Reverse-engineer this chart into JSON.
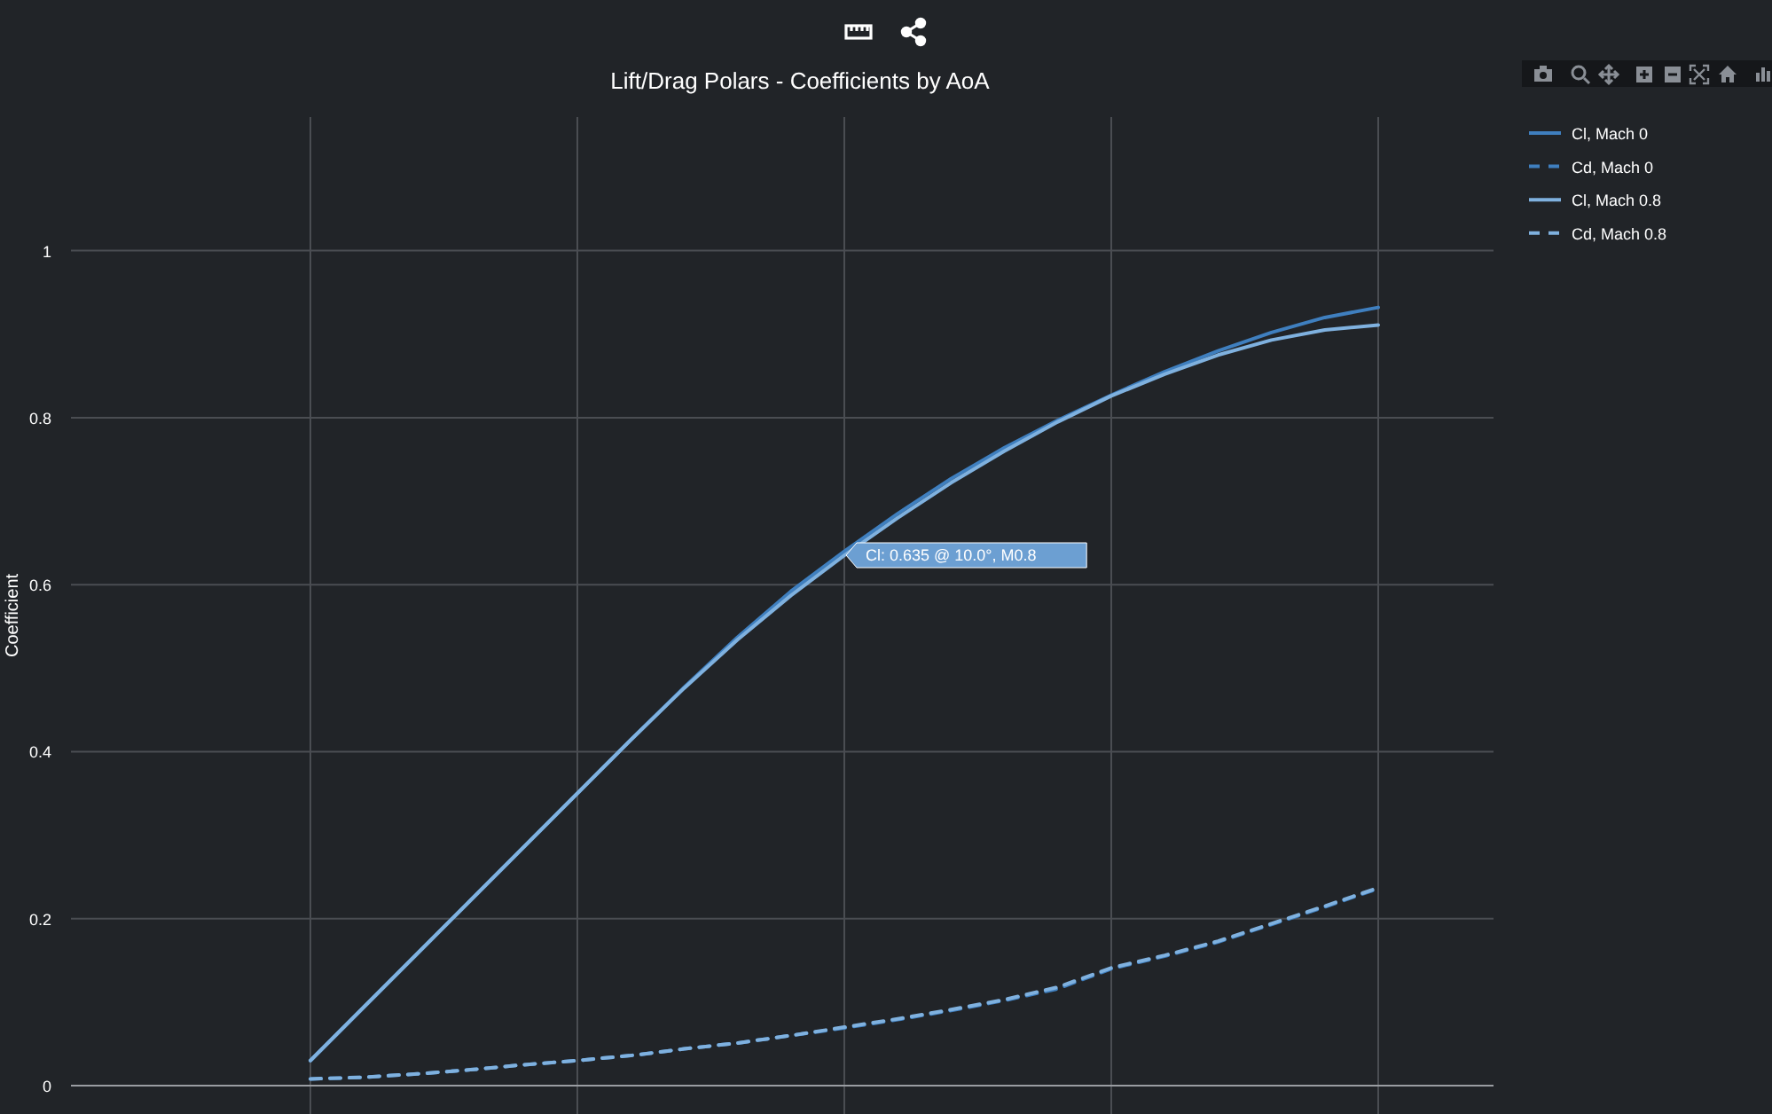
{
  "chart_data": {
    "type": "line",
    "title": "Lift/Drag Polars - Coefficients by AoA",
    "ylabel": "Coefficient",
    "categories": [
      null,
      null,
      null,
      null,
      null,
      null,
      null,
      null,
      null,
      null,
      null,
      null,
      null,
      null,
      null,
      null,
      null,
      null,
      null,
      null,
      null
    ],
    "series": [
      {
        "name": "Cl, Mach 0",
        "color": "#3f7fbf",
        "line_style": "solid",
        "values": [
          0.03,
          0.094,
          0.158,
          0.222,
          0.286,
          0.35,
          0.414,
          0.477,
          0.537,
          0.592,
          0.64,
          0.685,
          0.727,
          0.764,
          0.797,
          0.827,
          0.855,
          0.88,
          0.902,
          0.92,
          0.932
        ]
      },
      {
        "name": "Cd, Mach 0",
        "color": "#3f7fbf",
        "line_style": "dashed",
        "values": [
          0.008,
          0.01,
          0.014,
          0.019,
          0.025,
          0.03,
          0.036,
          0.044,
          0.051,
          0.06,
          0.069,
          0.079,
          0.09,
          0.102,
          0.116,
          0.14,
          0.155,
          0.172,
          0.193,
          0.214,
          0.236
        ]
      },
      {
        "name": "Cl, Mach 0.8",
        "color": "#7fb1df",
        "line_style": "solid",
        "values": [
          0.03,
          0.094,
          0.158,
          0.222,
          0.286,
          0.35,
          0.414,
          0.476,
          0.534,
          0.587,
          0.635,
          0.68,
          0.722,
          0.76,
          0.795,
          0.826,
          0.852,
          0.875,
          0.893,
          0.905,
          0.911
        ]
      },
      {
        "name": "Cd, Mach 0.8",
        "color": "#7fb1df",
        "line_style": "dashed",
        "values": [
          0.008,
          0.01,
          0.014,
          0.019,
          0.025,
          0.03,
          0.036,
          0.044,
          0.051,
          0.06,
          0.07,
          0.08,
          0.091,
          0.103,
          0.118,
          0.141,
          0.156,
          0.173,
          0.194,
          0.215,
          0.237
        ]
      }
    ],
    "ylim": [
      -0.034,
      1.16
    ],
    "yticks": [
      0,
      0.2,
      0.4,
      0.6,
      0.8,
      1
    ],
    "grid": true,
    "legend": "top right",
    "marker": "none",
    "annotations": [
      "Cl: 0.635 @ 10.0°, M0.8"
    ]
  }
}
